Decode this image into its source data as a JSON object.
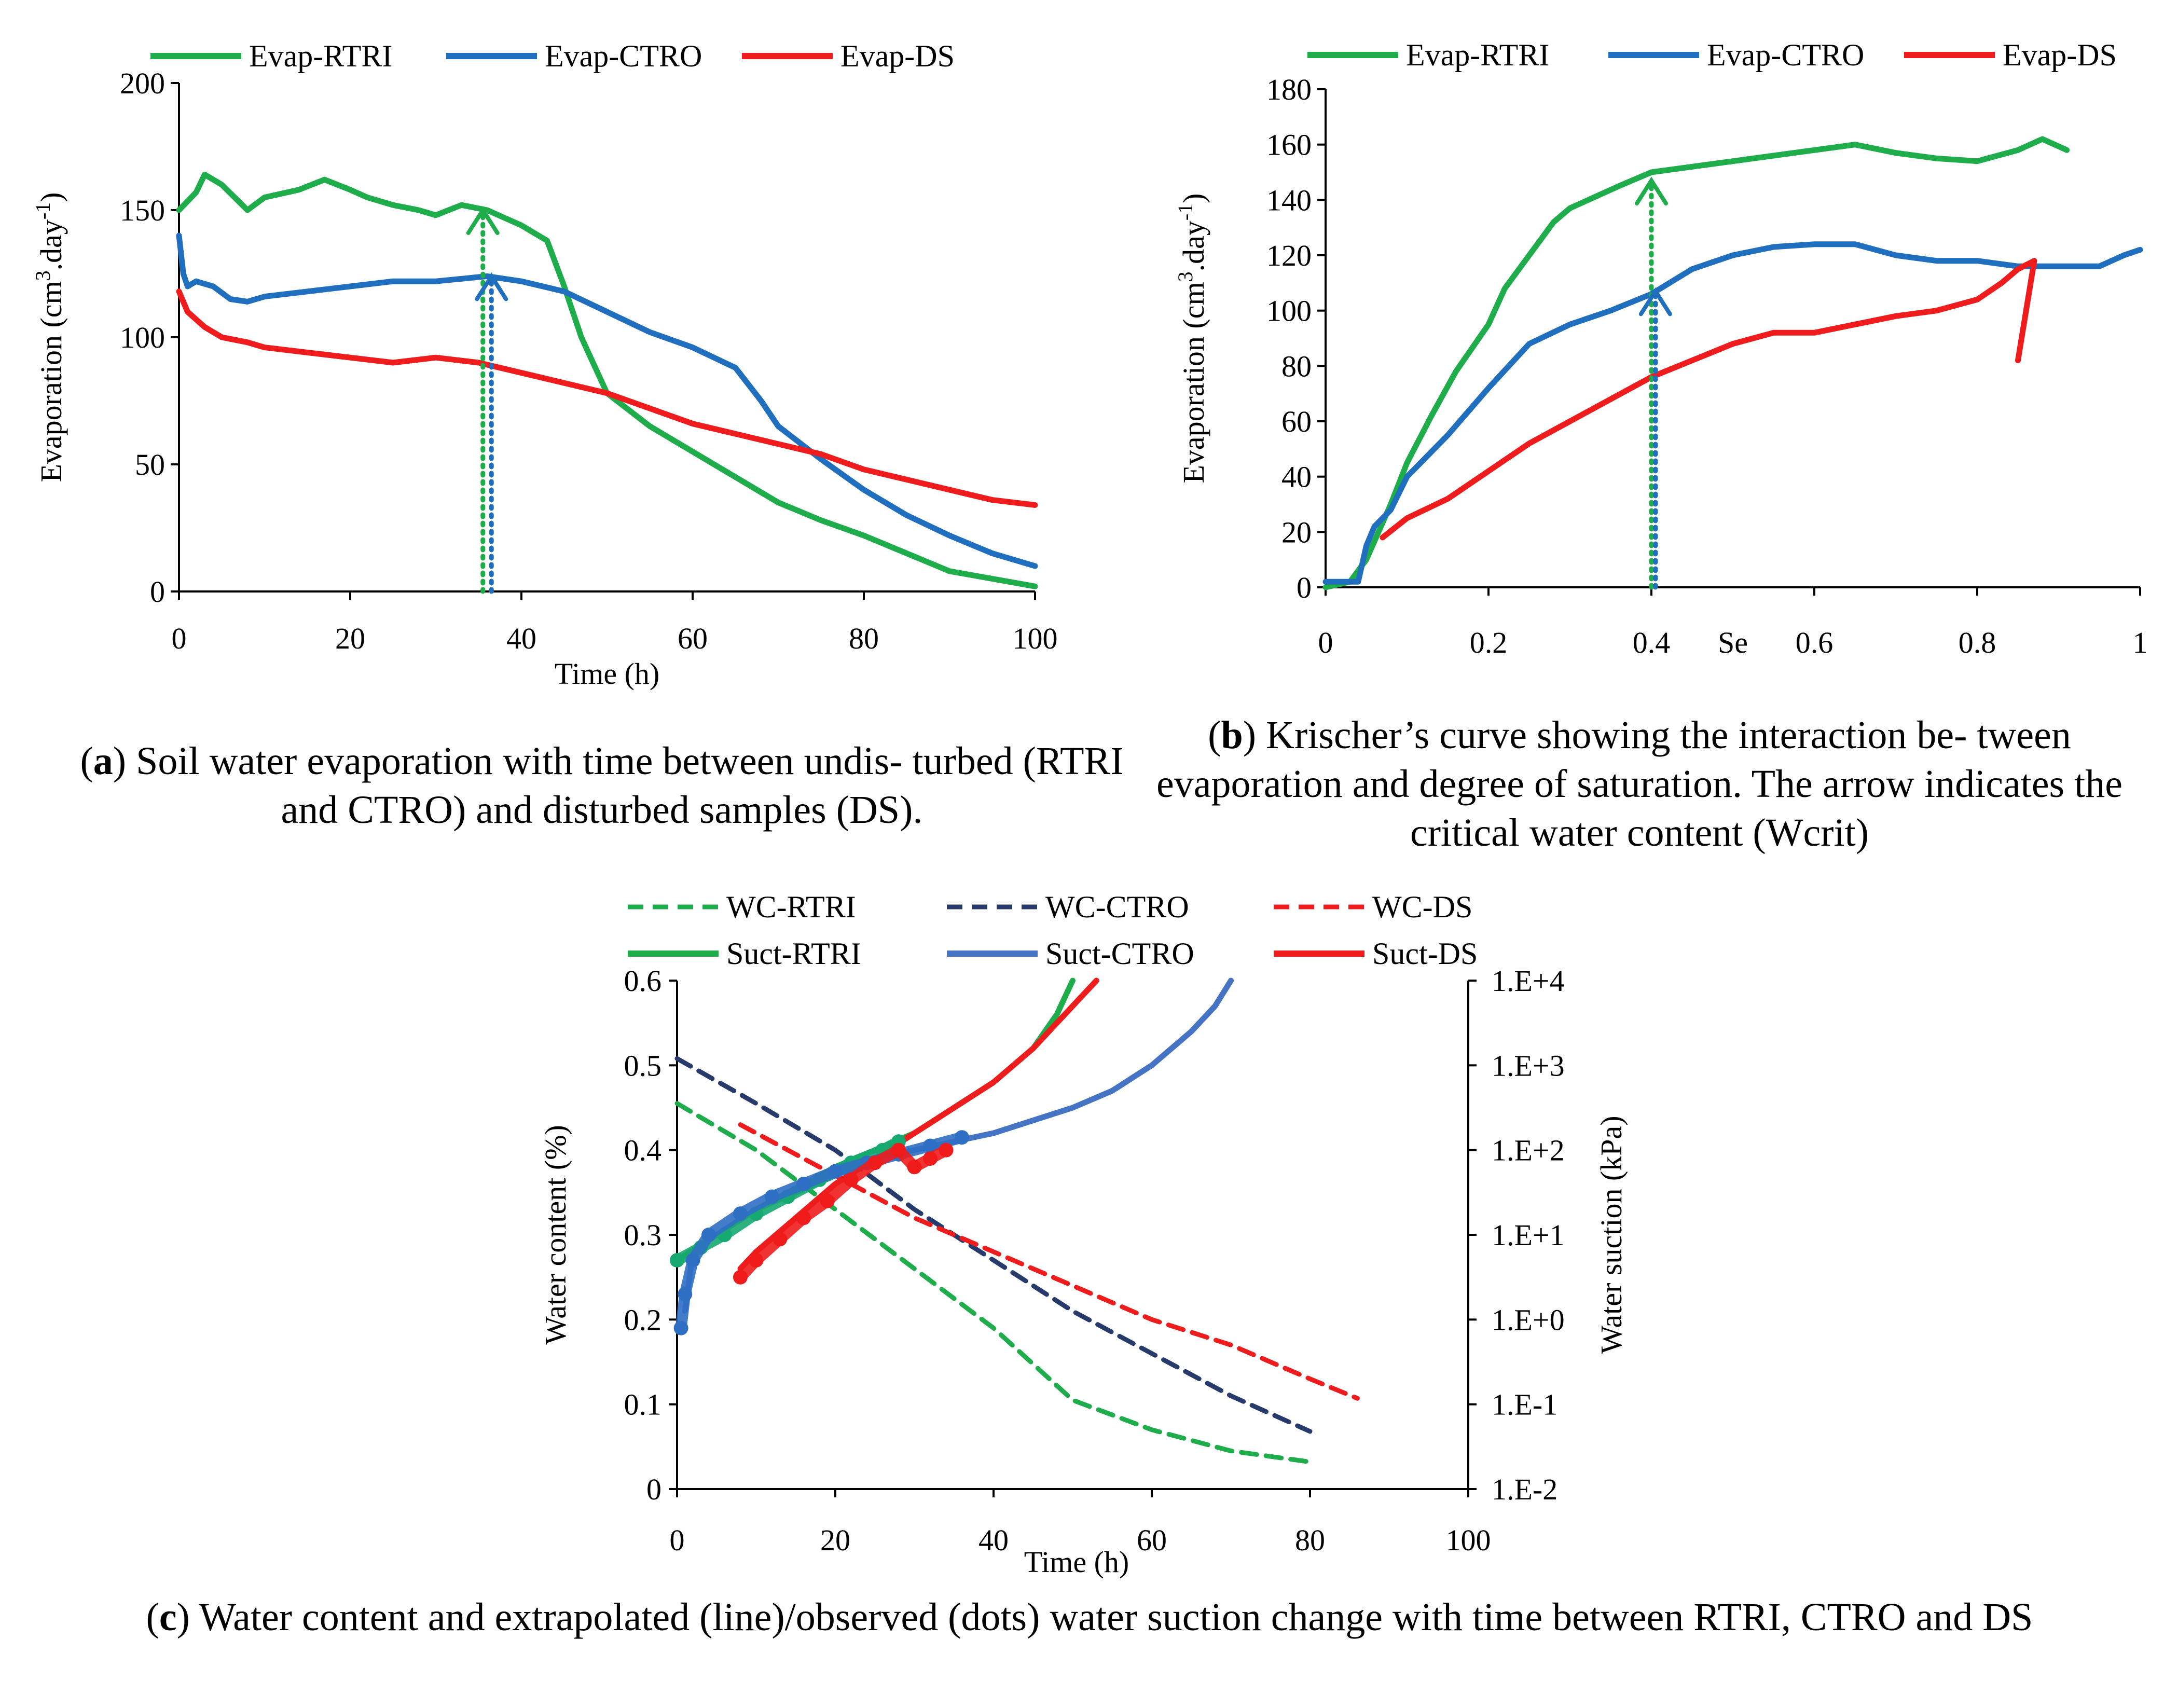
{
  "captions": {
    "a": {
      "letter": "a",
      "text": " Soil water evaporation with time between undis- turbed (RTRI and CTRO) and disturbed samples (DS)."
    },
    "b": {
      "letter": "b",
      "text": " Krischer’s curve showing the interaction be- tween evaporation and degree of saturation. The arrow indicates the critical water content (Wcrit)"
    },
    "c": {
      "letter": "c",
      "text": " Water content and extrapolated (line)/observed (dots) water suction change with time between RTRI, CTRO and DS"
    }
  },
  "colors": {
    "green": "#1fac4b",
    "blue": "#1f6fbe",
    "red": "#ee1c1c",
    "darkblue": "#263b6b",
    "lightblue": "#4674c4",
    "dotgreen": "#16a870",
    "dotblue": "#2f6fc4"
  },
  "chart_data": [
    {
      "id": "a",
      "type": "line",
      "title": "",
      "xlabel": "Time (h)",
      "ylabel": "Evaporation (cm3.day-1)",
      "xlim": [
        0,
        100
      ],
      "ylim": [
        0,
        200
      ],
      "xticks": [
        "0",
        "20",
        "40",
        "60",
        "80",
        "100"
      ],
      "yticks": [
        "0",
        "50",
        "100",
        "150",
        "200"
      ],
      "legend": [
        "Evap-RTRI",
        "Evap-CTRO",
        "Evap-DS"
      ],
      "legend_position": "top",
      "critical_markers": [
        {
          "series": "Evap-RTRI",
          "x": 35.5,
          "y": 150
        },
        {
          "series": "Evap-CTRO",
          "x": 36.5,
          "y": 124
        }
      ],
      "series": [
        {
          "name": "Evap-RTRI",
          "color": "green",
          "x": [
            0,
            2,
            3,
            5,
            8,
            10,
            14,
            17,
            20,
            22,
            25,
            28,
            30,
            33,
            36,
            40,
            43,
            45,
            47,
            50,
            55,
            60,
            65,
            70,
            75,
            80,
            85,
            90,
            95,
            100
          ],
          "y": [
            150,
            157,
            164,
            160,
            150,
            155,
            158,
            162,
            158,
            155,
            152,
            150,
            148,
            152,
            150,
            144,
            138,
            120,
            100,
            78,
            65,
            55,
            45,
            35,
            28,
            22,
            15,
            8,
            5,
            2
          ]
        },
        {
          "name": "Evap-CTRO",
          "color": "blue",
          "x": [
            0,
            0.5,
            1,
            2,
            4,
            6,
            8,
            10,
            15,
            20,
            25,
            30,
            36,
            40,
            45,
            50,
            55,
            60,
            65,
            68,
            70,
            75,
            80,
            85,
            90,
            95,
            100
          ],
          "y": [
            140,
            125,
            120,
            122,
            120,
            115,
            114,
            116,
            118,
            120,
            122,
            122,
            124,
            122,
            118,
            110,
            102,
            96,
            88,
            75,
            65,
            52,
            40,
            30,
            22,
            15,
            10
          ]
        },
        {
          "name": "Evap-DS",
          "color": "red",
          "x": [
            0,
            1,
            3,
            5,
            8,
            10,
            15,
            20,
            25,
            30,
            35,
            40,
            45,
            50,
            55,
            60,
            65,
            70,
            75,
            80,
            85,
            90,
            95,
            100
          ],
          "y": [
            118,
            110,
            104,
            100,
            98,
            96,
            94,
            92,
            90,
            92,
            90,
            86,
            82,
            78,
            72,
            66,
            62,
            58,
            54,
            48,
            44,
            40,
            36,
            34
          ]
        }
      ]
    },
    {
      "id": "b",
      "type": "line",
      "title": "",
      "xlabel": "Se",
      "ylabel": "Evaporation (cm3.day-1)",
      "xlim": [
        0,
        1
      ],
      "ylim": [
        0,
        180
      ],
      "xticks": [
        "0",
        "0.2",
        "0.4",
        "0.6",
        "0.8",
        "1"
      ],
      "yticks": [
        "0",
        "20",
        "40",
        "60",
        "80",
        "100",
        "120",
        "140",
        "160",
        "180"
      ],
      "legend": [
        "Evap-RTRI",
        "Evap-CTRO",
        "Evap-DS"
      ],
      "legend_position": "top",
      "critical_markers": [
        {
          "series": "Evap-RTRI",
          "x": 0.4,
          "y": 147
        },
        {
          "series": "Evap-CTRO",
          "x": 0.405,
          "y": 107
        }
      ],
      "series": [
        {
          "name": "Evap-RTRI",
          "color": "green",
          "x": [
            0,
            0.03,
            0.05,
            0.08,
            0.1,
            0.13,
            0.16,
            0.2,
            0.22,
            0.25,
            0.28,
            0.3,
            0.33,
            0.36,
            0.4,
            0.45,
            0.5,
            0.55,
            0.6,
            0.65,
            0.7,
            0.75,
            0.8,
            0.85,
            0.88,
            0.91
          ],
          "y": [
            0,
            2,
            10,
            30,
            45,
            62,
            78,
            95,
            108,
            120,
            132,
            137,
            141,
            145,
            150,
            152,
            154,
            156,
            158,
            160,
            157,
            155,
            154,
            158,
            162,
            158
          ]
        },
        {
          "name": "Evap-CTRO",
          "color": "blue",
          "x": [
            0,
            0.04,
            0.05,
            0.06,
            0.08,
            0.1,
            0.15,
            0.2,
            0.25,
            0.3,
            0.35,
            0.4,
            0.45,
            0.5,
            0.55,
            0.6,
            0.65,
            0.7,
            0.75,
            0.8,
            0.85,
            0.9,
            0.95,
            0.98,
            1
          ],
          "y": [
            2,
            2,
            15,
            22,
            28,
            40,
            55,
            72,
            88,
            95,
            100,
            106,
            115,
            120,
            123,
            124,
            124,
            120,
            118,
            118,
            116,
            116,
            116,
            120,
            122
          ]
        },
        {
          "name": "Evap-DS",
          "color": "red",
          "x": [
            0.07,
            0.1,
            0.15,
            0.2,
            0.25,
            0.3,
            0.35,
            0.4,
            0.45,
            0.5,
            0.55,
            0.6,
            0.65,
            0.7,
            0.75,
            0.8,
            0.83,
            0.85,
            0.87,
            0.86,
            0.85
          ],
          "y": [
            18,
            25,
            32,
            42,
            52,
            60,
            68,
            76,
            82,
            88,
            92,
            92,
            95,
            98,
            100,
            104,
            110,
            115,
            118,
            100,
            82
          ]
        }
      ]
    },
    {
      "id": "c",
      "type": "line",
      "title": "",
      "xlabel": "Time (h)",
      "ylabel": "Water content (%)",
      "ylabel_right": "Water suction (kPa)",
      "xlim": [
        0,
        100
      ],
      "ylim": [
        0,
        0.6
      ],
      "ylim_right_log10": [
        -2,
        4
      ],
      "xticks": [
        "0",
        "20",
        "40",
        "60",
        "80",
        "100"
      ],
      "yticks": [
        "0",
        "0.1",
        "0.2",
        "0.3",
        "0.4",
        "0.5",
        "0.6"
      ],
      "yticks_right": [
        "1.E-2",
        "1.E-1",
        "1.E+0",
        "1.E+1",
        "1.E+2",
        "1.E+3",
        "1.E+4"
      ],
      "legend": [
        "WC-RTRI",
        "WC-CTRO",
        "WC-DS",
        "Suct-RTRI",
        "Suct-CTRO",
        "Suct-DS"
      ],
      "legend_position": "top",
      "series": [
        {
          "name": "WC-RTRI",
          "axis": "left",
          "style": "dashed",
          "color": "green",
          "x": [
            0,
            10,
            20,
            30,
            40,
            50,
            60,
            70,
            80
          ],
          "y": [
            0.455,
            0.4,
            0.33,
            0.26,
            0.19,
            0.105,
            0.07,
            0.045,
            0.032
          ]
        },
        {
          "name": "WC-CTRO",
          "axis": "left",
          "style": "dashed",
          "color": "darkblue",
          "x": [
            0,
            10,
            20,
            30,
            40,
            50,
            60,
            70,
            80
          ],
          "y": [
            0.508,
            0.455,
            0.4,
            0.33,
            0.27,
            0.21,
            0.16,
            0.11,
            0.068
          ]
        },
        {
          "name": "WC-DS",
          "axis": "left",
          "style": "dashed",
          "color": "red",
          "x": [
            8,
            20,
            30,
            40,
            50,
            60,
            70,
            80,
            86
          ],
          "y": [
            0.43,
            0.37,
            0.32,
            0.28,
            0.24,
            0.2,
            0.17,
            0.13,
            0.107
          ]
        },
        {
          "name": "Suct-RTRI",
          "axis": "right",
          "style": "solid",
          "color": "green",
          "x": [
            0,
            5,
            10,
            15,
            20,
            25,
            30,
            35,
            40,
            45,
            48,
            50
          ],
          "y_log10": [
            0.7,
            1.0,
            1.3,
            1.55,
            1.8,
            2.0,
            2.2,
            2.5,
            2.8,
            3.2,
            3.6,
            4.0
          ]
        },
        {
          "name": "Suct-CTRO",
          "axis": "right",
          "style": "solid",
          "color": "lightblue",
          "x": [
            1,
            2,
            5,
            10,
            15,
            20,
            25,
            30,
            35,
            40,
            50,
            55,
            60,
            65,
            68,
            70
          ],
          "y_log10": [
            0.1,
            0.8,
            1.0,
            1.3,
            1.5,
            1.7,
            1.9,
            2.0,
            2.1,
            2.2,
            2.5,
            2.7,
            3.0,
            3.4,
            3.7,
            4.0
          ]
        },
        {
          "name": "Suct-DS",
          "axis": "right",
          "style": "solid",
          "color": "red",
          "x": [
            8,
            10,
            15,
            20,
            25,
            30,
            35,
            40,
            45,
            50,
            53
          ],
          "y_log10": [
            0.6,
            0.8,
            1.2,
            1.6,
            1.9,
            2.2,
            2.5,
            2.8,
            3.2,
            3.7,
            4.0
          ]
        },
        {
          "name": "Obs-RTRI",
          "axis": "right",
          "style": "dots",
          "color": "dotgreen",
          "x": [
            0,
            3,
            6,
            10,
            14,
            18,
            22,
            26,
            28
          ],
          "y_log10": [
            0.7,
            0.85,
            1.0,
            1.25,
            1.45,
            1.65,
            1.85,
            2.0,
            2.1
          ]
        },
        {
          "name": "Obs-CTRO",
          "axis": "right",
          "style": "dots",
          "color": "dotblue",
          "x": [
            0.5,
            1,
            2,
            4,
            8,
            12,
            16,
            20,
            24,
            28,
            32,
            36
          ],
          "y_log10": [
            -0.1,
            0.3,
            0.7,
            1.0,
            1.25,
            1.45,
            1.6,
            1.75,
            1.85,
            1.95,
            2.05,
            2.15
          ]
        },
        {
          "name": "Obs-DS",
          "axis": "right",
          "style": "dots",
          "color": "red",
          "x": [
            8,
            10,
            13,
            16,
            19,
            22,
            25,
            28,
            30,
            32,
            34
          ],
          "y_log10": [
            0.5,
            0.7,
            0.95,
            1.2,
            1.4,
            1.65,
            1.85,
            2.0,
            1.8,
            1.9,
            2.0
          ]
        }
      ]
    }
  ]
}
